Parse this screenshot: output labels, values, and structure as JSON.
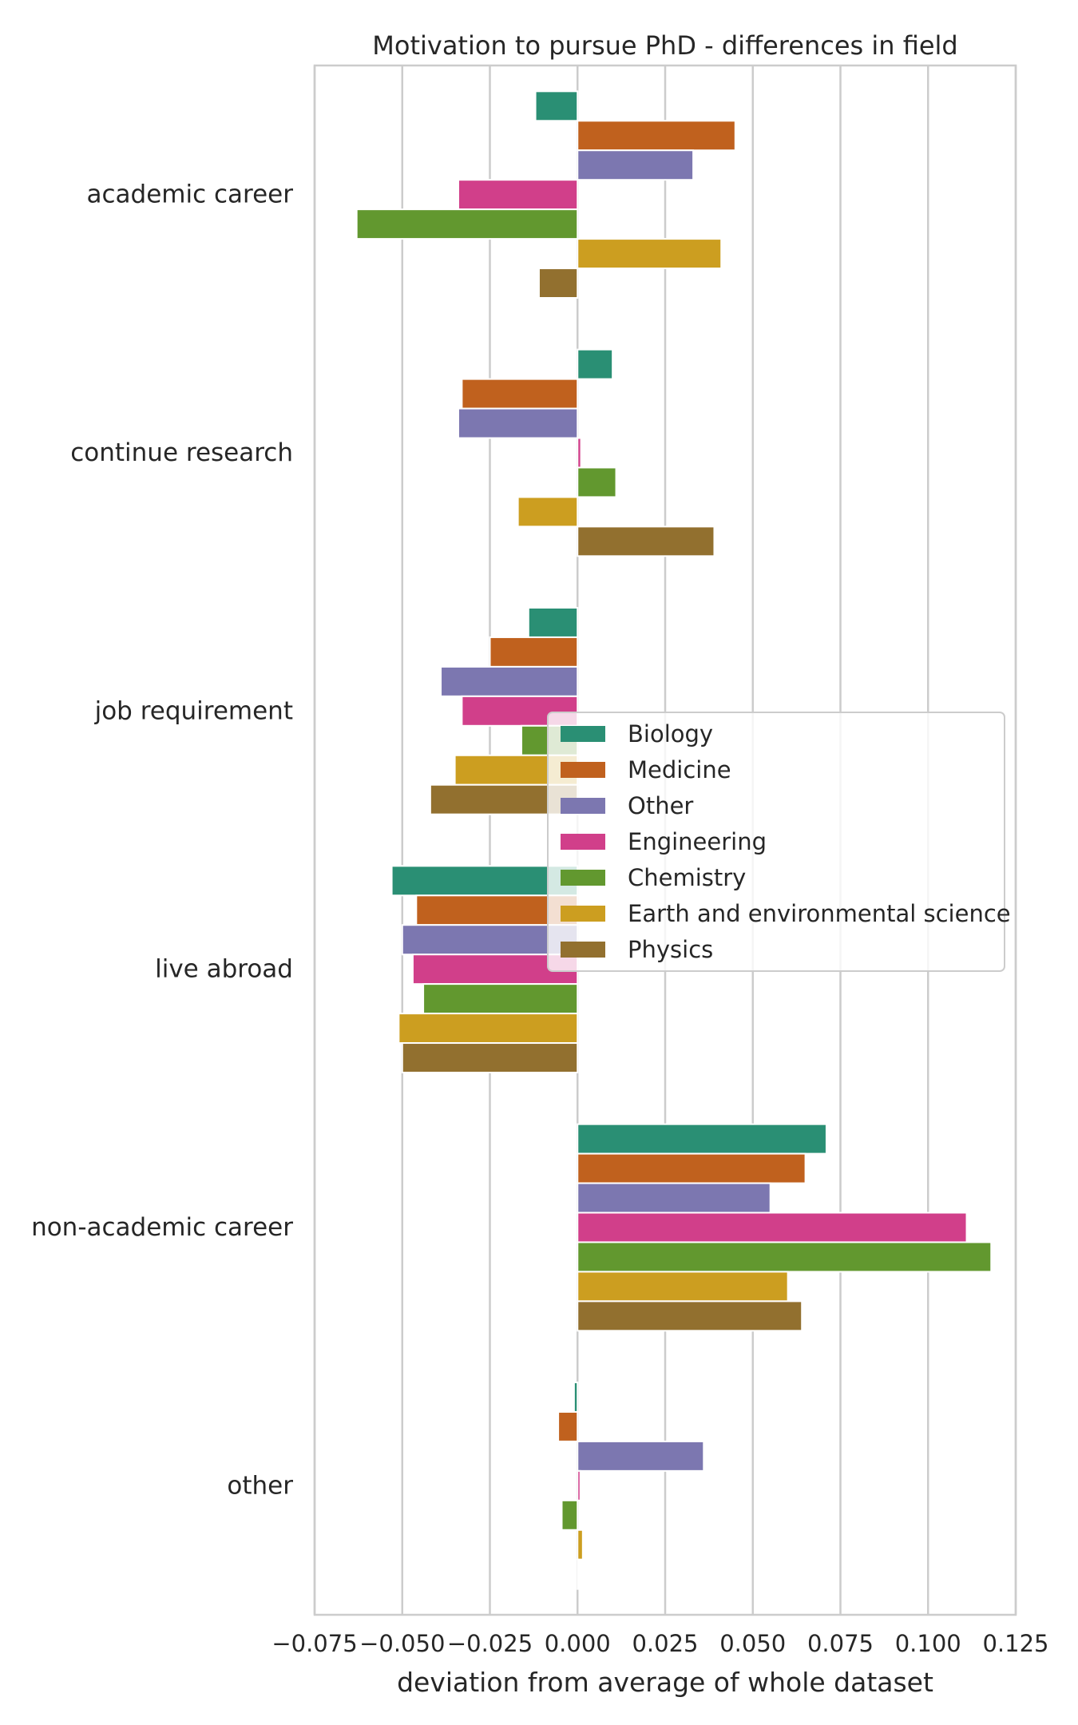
{
  "chart_data": {
    "type": "bar",
    "orientation": "horizontal",
    "title": "Motivation to pursue PhD - differences in field",
    "xlabel": "deviation from average of whole dataset",
    "ylabel": "",
    "xlim": [
      -0.075,
      0.125
    ],
    "xticks": [
      -0.075,
      -0.05,
      -0.025,
      0.0,
      0.025,
      0.05,
      0.075,
      0.1,
      0.125
    ],
    "xtick_labels": [
      "−0.075",
      "−0.050",
      "−0.025",
      "0.000",
      "0.025",
      "0.050",
      "0.075",
      "0.100",
      "0.125"
    ],
    "grid": "vertical",
    "legend_position": "center-right",
    "categories": [
      "academic career",
      "continue research",
      "job requirement",
      "live abroad",
      "non-academic career",
      "other"
    ],
    "series": [
      {
        "name": "Biology",
        "color": "#2a8f74",
        "values": [
          -0.012,
          0.01,
          -0.014,
          -0.053,
          0.071,
          -0.001
        ]
      },
      {
        "name": "Medicine",
        "color": "#c0611e",
        "values": [
          0.045,
          -0.033,
          -0.025,
          -0.046,
          0.065,
          -0.0055
        ]
      },
      {
        "name": "Other",
        "color": "#7c77b0",
        "values": [
          0.033,
          -0.034,
          -0.039,
          -0.05,
          0.055,
          0.036
        ]
      },
      {
        "name": "Engineering",
        "color": "#d13f8a",
        "values": [
          -0.034,
          0.001,
          -0.033,
          -0.047,
          0.111,
          0.0008
        ]
      },
      {
        "name": "Chemistry",
        "color": "#62982f",
        "values": [
          -0.063,
          0.011,
          -0.016,
          -0.044,
          0.118,
          -0.0045
        ]
      },
      {
        "name": "Earth and environmental science",
        "color": "#cc9e20",
        "values": [
          0.041,
          -0.017,
          -0.035,
          -0.051,
          0.06,
          0.0015
        ]
      },
      {
        "name": "Physics",
        "color": "#92702f",
        "values": [
          -0.011,
          0.039,
          -0.042,
          -0.05,
          0.064,
          0.0
        ]
      }
    ]
  }
}
